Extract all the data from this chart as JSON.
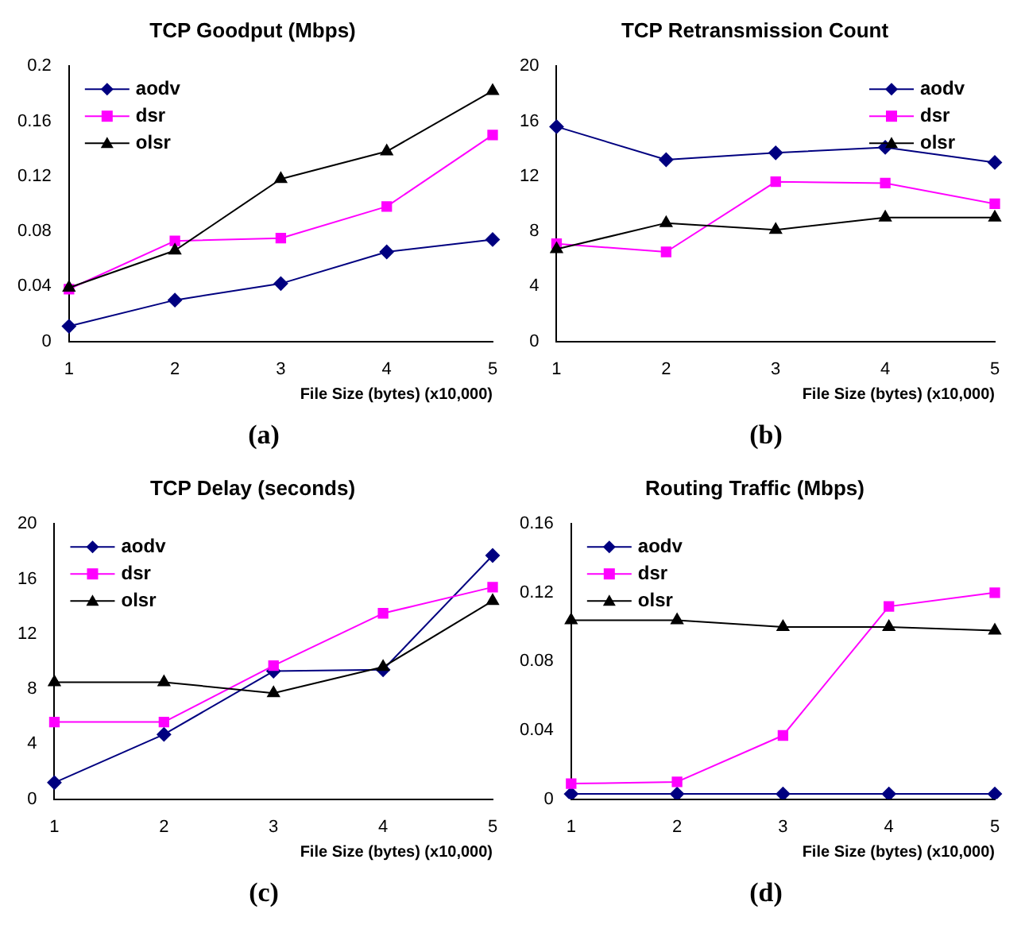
{
  "chart_data": [
    {
      "type": "line",
      "title": "TCP Goodput (Mbps)",
      "xlabel": "File Size (bytes) (x10,000)",
      "annotations": [
        "(a)"
      ],
      "categories": [
        "1",
        "2",
        "3",
        "4",
        "5"
      ],
      "ylim": [
        0,
        0.2
      ],
      "yticks": [
        0,
        0.04,
        0.08,
        0.12,
        0.16,
        0.2
      ],
      "grid": false,
      "legend": "top left",
      "series": [
        {
          "name": "aodv",
          "color": "#000080",
          "marker": "diamond",
          "values": [
            0.011,
            0.03,
            0.042,
            0.065,
            0.074
          ]
        },
        {
          "name": "dsr",
          "color": "#ff00ff",
          "marker": "square",
          "values": [
            0.038,
            0.073,
            0.075,
            0.098,
            0.15
          ]
        },
        {
          "name": "olsr",
          "color": "#000000",
          "marker": "triangle",
          "values": [
            0.039,
            0.066,
            0.118,
            0.138,
            0.182
          ]
        }
      ]
    },
    {
      "type": "line",
      "title": "TCP Retransmission Count",
      "xlabel": "File Size (bytes) (x10,000)",
      "annotations": [
        "(b)"
      ],
      "categories": [
        "1",
        "2",
        "3",
        "4",
        "5"
      ],
      "ylim": [
        0,
        20
      ],
      "yticks": [
        0,
        4,
        8,
        12,
        16,
        20
      ],
      "grid": false,
      "legend": "top right",
      "series": [
        {
          "name": "aodv",
          "color": "#000080",
          "marker": "diamond",
          "values": [
            15.6,
            13.2,
            13.7,
            14.1,
            13.0
          ]
        },
        {
          "name": "dsr",
          "color": "#ff00ff",
          "marker": "square",
          "values": [
            7.1,
            6.5,
            11.6,
            11.5,
            10.0
          ]
        },
        {
          "name": "olsr",
          "color": "#000000",
          "marker": "triangle",
          "values": [
            6.7,
            8.6,
            8.1,
            9.0,
            9.0
          ]
        }
      ]
    },
    {
      "type": "line",
      "title": "TCP Delay (seconds)",
      "xlabel": "File Size (bytes) (x10,000)",
      "annotations": [
        "(c)"
      ],
      "categories": [
        "1",
        "2",
        "3",
        "4",
        "5"
      ],
      "ylim": [
        0,
        20
      ],
      "yticks": [
        0,
        4,
        8,
        12,
        16,
        20
      ],
      "grid": false,
      "legend": "top left",
      "series": [
        {
          "name": "aodv",
          "color": "#000080",
          "marker": "diamond",
          "values": [
            1.2,
            4.7,
            9.3,
            9.4,
            17.7
          ]
        },
        {
          "name": "dsr",
          "color": "#ff00ff",
          "marker": "square",
          "values": [
            5.6,
            5.6,
            9.7,
            13.5,
            15.4
          ]
        },
        {
          "name": "olsr",
          "color": "#000000",
          "marker": "triangle",
          "values": [
            8.5,
            8.5,
            7.7,
            9.6,
            14.4
          ]
        }
      ]
    },
    {
      "type": "line",
      "title": "Routing Traffic (Mbps)",
      "xlabel": "File Size (bytes) (x10,000)",
      "annotations": [
        "(d)"
      ],
      "categories": [
        "1",
        "2",
        "3",
        "4",
        "5"
      ],
      "ylim": [
        0,
        0.16
      ],
      "yticks": [
        0,
        0.04,
        0.08,
        0.12,
        0.16
      ],
      "grid": false,
      "legend": "top left",
      "series": [
        {
          "name": "aodv",
          "color": "#000080",
          "marker": "diamond",
          "values": [
            0.003,
            0.003,
            0.003,
            0.003,
            0.003
          ]
        },
        {
          "name": "dsr",
          "color": "#ff00ff",
          "marker": "square",
          "values": [
            0.009,
            0.01,
            0.037,
            0.112,
            0.12
          ]
        },
        {
          "name": "olsr",
          "color": "#000000",
          "marker": "triangle",
          "values": [
            0.104,
            0.104,
            0.1,
            0.1,
            0.098
          ]
        }
      ]
    }
  ]
}
